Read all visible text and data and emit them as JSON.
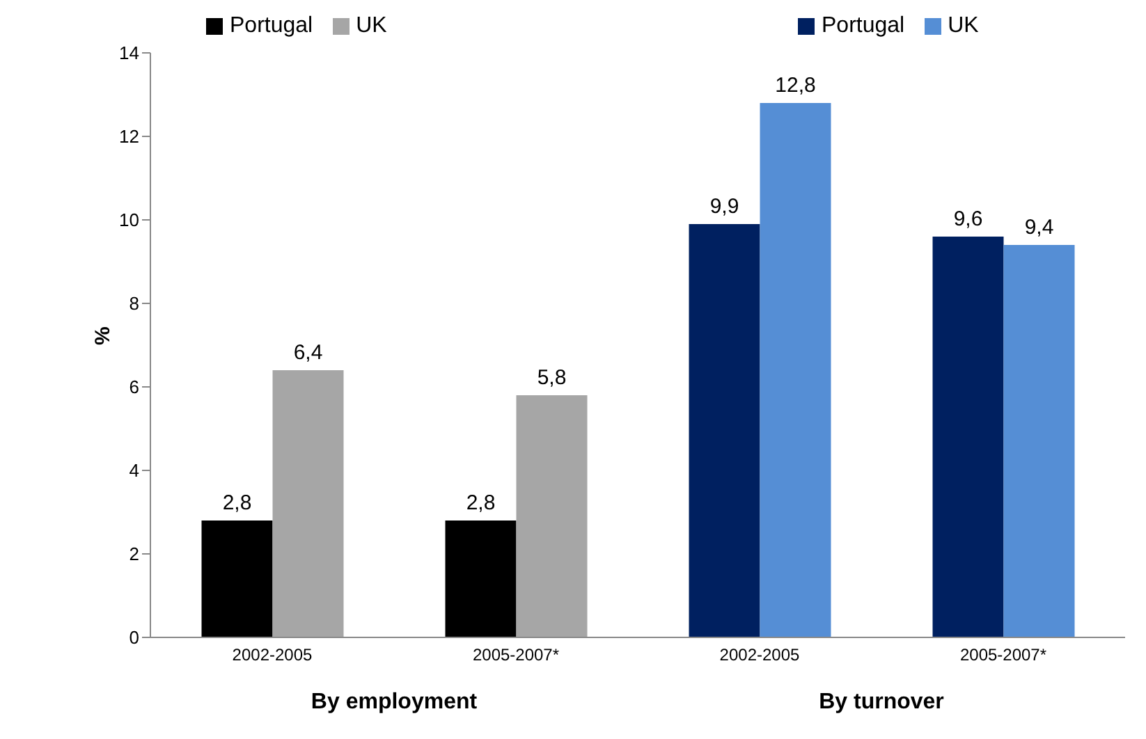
{
  "chart_data": {
    "type": "bar",
    "ylabel": "%",
    "categories": [
      "2002-2005",
      "2005-2007*",
      "2002-2005",
      "2005-2007*"
    ],
    "series": [
      {
        "name": "Portugal",
        "color": "#000000",
        "values": [
          2.8,
          2.8,
          null,
          null
        ],
        "value_labels": [
          "2,8",
          "2,8",
          null,
          null
        ]
      },
      {
        "name": "UK",
        "color": "#a6a6a6",
        "values": [
          6.4,
          5.8,
          null,
          null
        ],
        "value_labels": [
          "6,4",
          "5,8",
          null,
          null
        ]
      },
      {
        "name": "Portugal",
        "color": "#002060",
        "values": [
          null,
          null,
          9.9,
          9.6
        ],
        "value_labels": [
          null,
          null,
          "9,9",
          "9,6"
        ]
      },
      {
        "name": "UK",
        "color": "#558ed5",
        "values": [
          null,
          null,
          12.8,
          9.4
        ],
        "value_labels": [
          null,
          null,
          "12,8",
          "9,4"
        ]
      }
    ],
    "ylim": [
      0,
      14
    ],
    "yticks": [
      0,
      2,
      4,
      6,
      8,
      10,
      12,
      14
    ],
    "grid": false,
    "legend": "top",
    "annotations": [
      "By employment",
      "By turnover"
    ]
  }
}
